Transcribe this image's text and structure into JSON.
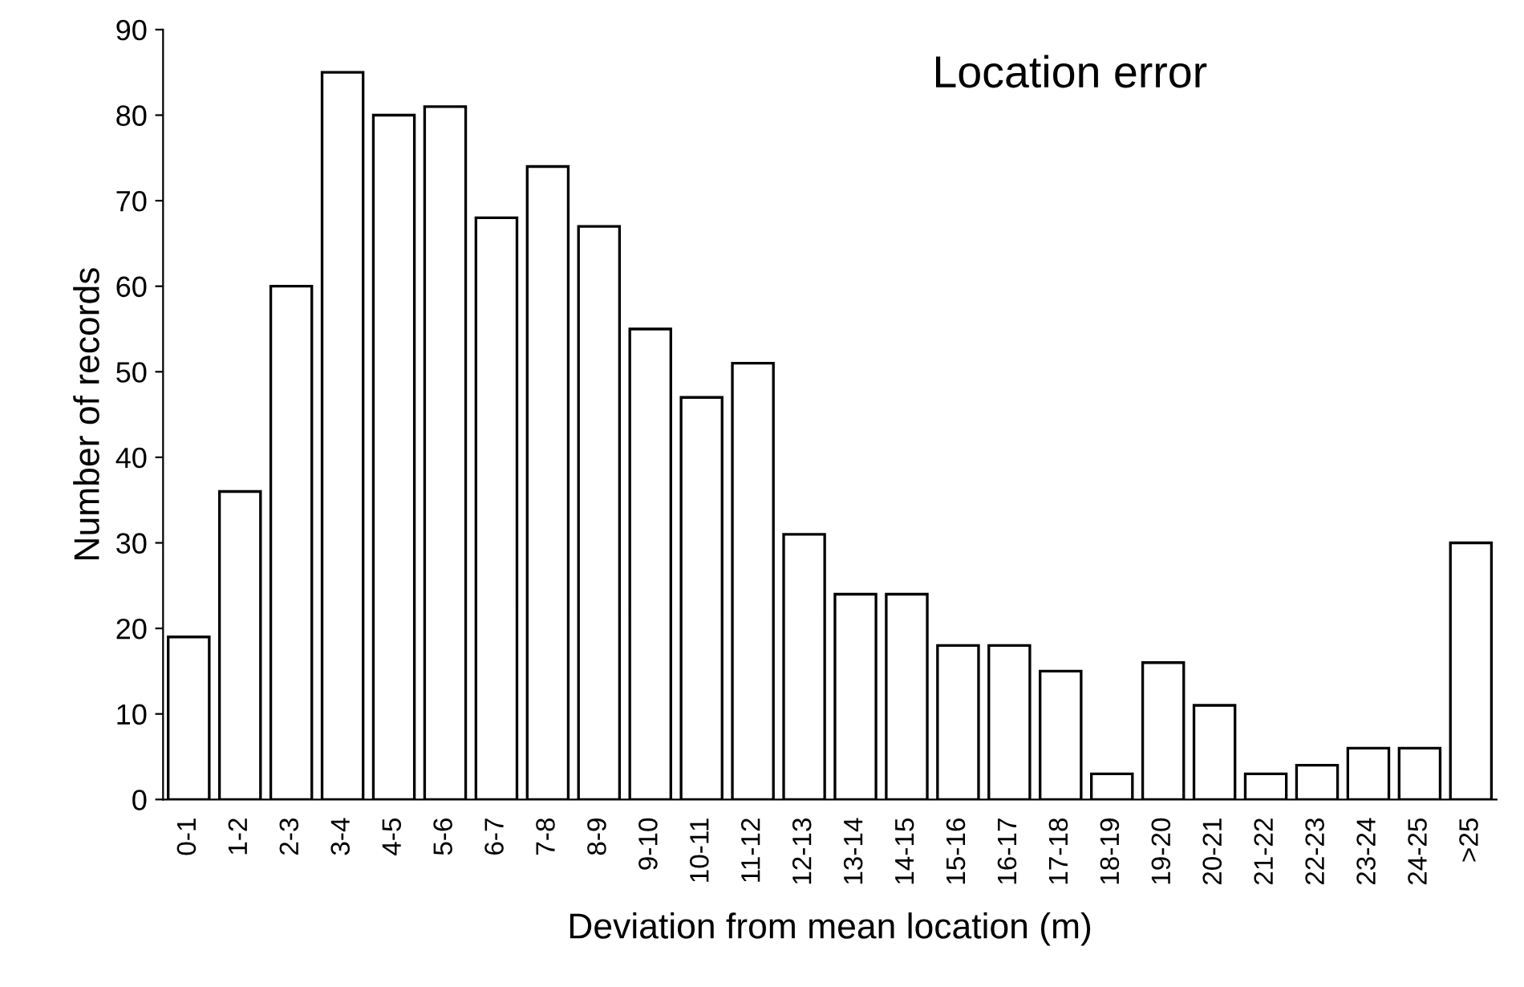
{
  "chart_data": {
    "type": "bar",
    "title": "Location error",
    "xlabel": "Deviation from mean location (m)",
    "ylabel": "Number of records",
    "categories": [
      "0-1",
      "1-2",
      "2-3",
      "3-4",
      "4-5",
      "5-6",
      "6-7",
      "7-8",
      "8-9",
      "9-10",
      "10-11",
      "11-12",
      "12-13",
      "13-14",
      "14-15",
      "15-16",
      "16-17",
      "17-18",
      "18-19",
      "19-20",
      "20-21",
      "21-22",
      "22-23",
      "23-24",
      "24-25",
      ">25"
    ],
    "values": [
      19,
      36,
      60,
      85,
      80,
      81,
      68,
      74,
      67,
      55,
      47,
      51,
      31,
      24,
      24,
      18,
      18,
      15,
      3,
      16,
      11,
      3,
      4,
      6,
      6,
      30
    ],
    "color": "#ffffff",
    "ylim": [
      0,
      90
    ],
    "yticks": [
      0,
      10,
      20,
      30,
      40,
      50,
      60,
      70,
      80,
      90
    ],
    "grid": false,
    "legend": false
  }
}
